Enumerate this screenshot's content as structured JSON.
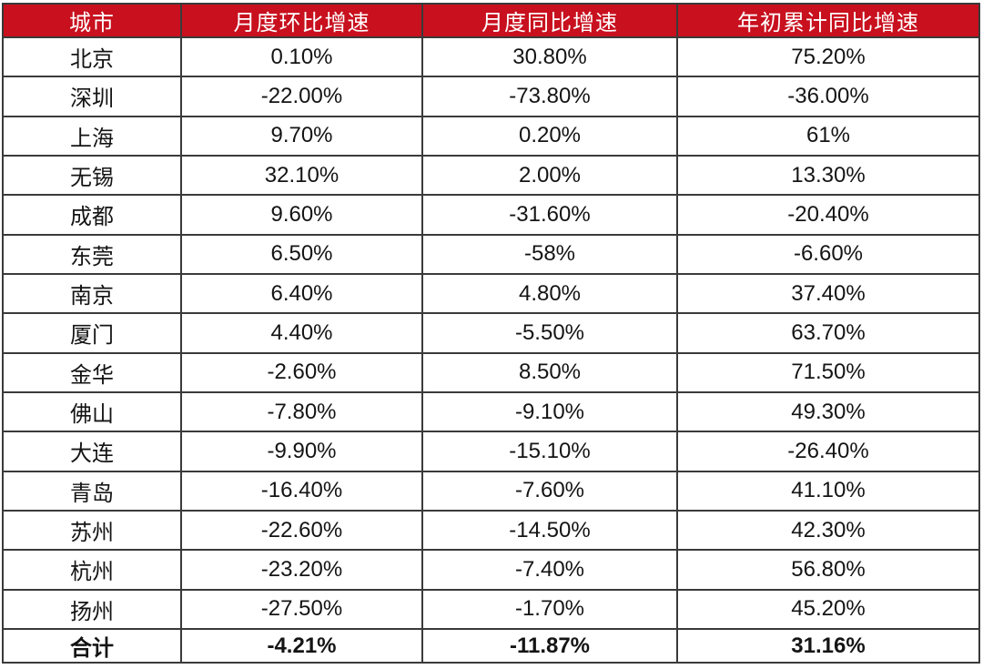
{
  "chart_data": {
    "type": "table",
    "columns": [
      "城市",
      "月度环比增速",
      "月度同比增速",
      "年初累计同比增速"
    ],
    "rows": [
      [
        "北京",
        "0.10%",
        "30.80%",
        "75.20%"
      ],
      [
        "深圳",
        "-22.00%",
        "-73.80%",
        "-36.00%"
      ],
      [
        "上海",
        "9.70%",
        "0.20%",
        "61%"
      ],
      [
        "无锡",
        "32.10%",
        "2.00%",
        "13.30%"
      ],
      [
        "成都",
        "9.60%",
        "-31.60%",
        "-20.40%"
      ],
      [
        "东莞",
        "6.50%",
        "-58%",
        "-6.60%"
      ],
      [
        "南京",
        "6.40%",
        "4.80%",
        "37.40%"
      ],
      [
        "厦门",
        "4.40%",
        "-5.50%",
        "63.70%"
      ],
      [
        "金华",
        "-2.60%",
        "8.50%",
        "71.50%"
      ],
      [
        "佛山",
        "-7.80%",
        "-9.10%",
        "49.30%"
      ],
      [
        "大连",
        "-9.90%",
        "-15.10%",
        "-26.40%"
      ],
      [
        "青岛",
        "-16.40%",
        "-7.60%",
        "41.10%"
      ],
      [
        "苏州",
        "-22.60%",
        "-14.50%",
        "42.30%"
      ],
      [
        "杭州",
        "-23.20%",
        "-7.40%",
        "56.80%"
      ],
      [
        "扬州",
        "-27.50%",
        "-1.70%",
        "45.20%"
      ]
    ],
    "total_row": [
      "合计",
      "-4.21%",
      "-11.87%",
      "31.16%"
    ],
    "layout": {
      "legend": "none",
      "grid": "all-borders",
      "header_position": "top"
    }
  },
  "colors": {
    "header_bg": "#C8101E",
    "header_text": "#FFFFFF",
    "border": "#3A3A3A",
    "body_text": "#141414",
    "background": "#FFFFFF"
  }
}
